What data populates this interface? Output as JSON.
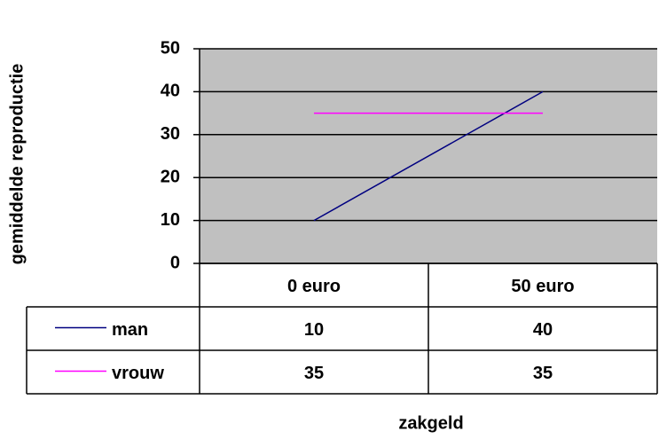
{
  "chart_data": {
    "type": "line",
    "y_label": "gemiddelde reproductie",
    "x_label": "zakgeld",
    "categories": [
      "0 euro",
      "50 euro"
    ],
    "series": [
      {
        "name": "man",
        "color": "#000080",
        "values": [
          10,
          40
        ]
      },
      {
        "name": "vrouw",
        "color": "#ff00ff",
        "values": [
          35,
          35
        ]
      }
    ],
    "ylim": [
      0,
      50
    ],
    "yticks": [
      0,
      10,
      20,
      30,
      40,
      50
    ],
    "grid": true,
    "legend": "data-table"
  }
}
